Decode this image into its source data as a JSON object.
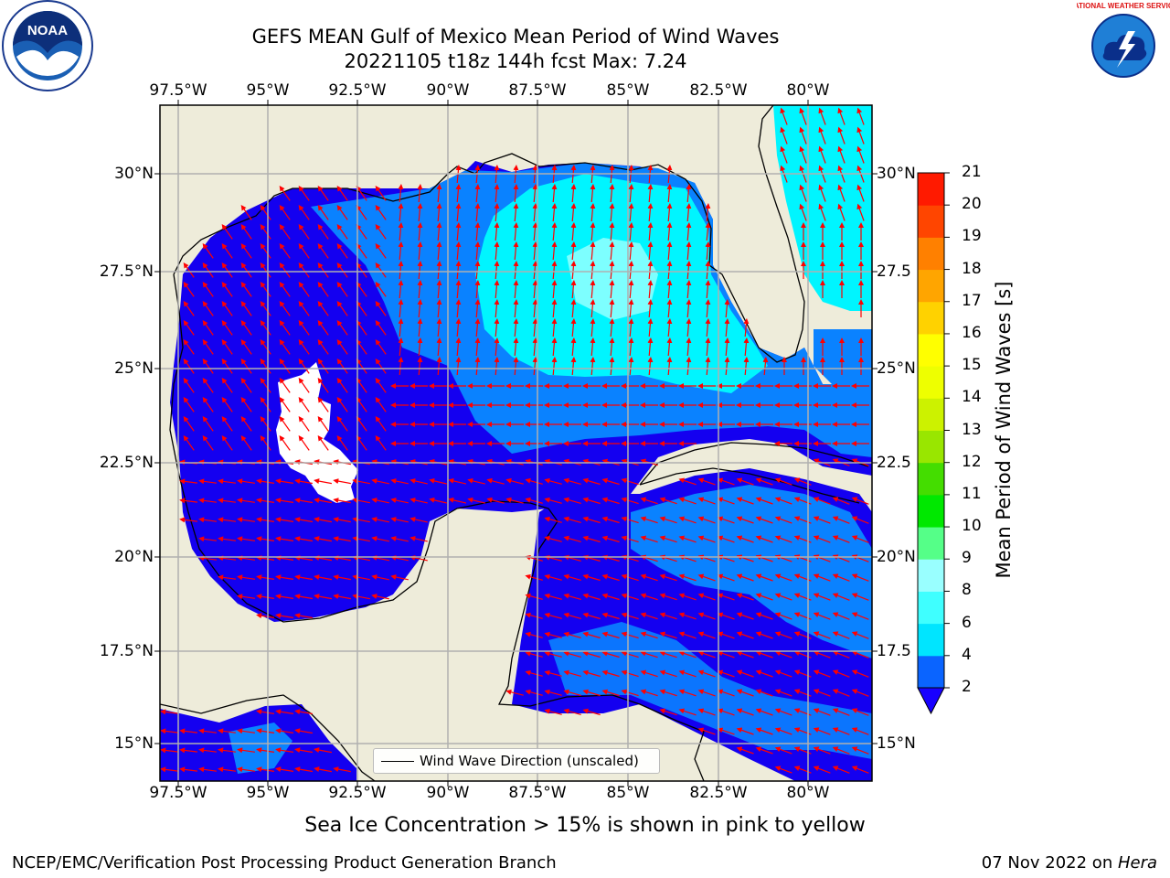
{
  "title": {
    "line1": "GEFS MEAN Gulf of Mexico Mean Period of Wind Waves",
    "line2": "20221105 t18z 144h fcst   Max: 7.24"
  },
  "axes": {
    "lon_labels": [
      "97.5°W",
      "95°W",
      "92.5°W",
      "90°W",
      "87.5°W",
      "85°W",
      "82.5°W",
      "80°W"
    ],
    "lat_labels_left": [
      "30°N",
      "27.5°N",
      "25°N",
      "22.5°N",
      "20°N",
      "17.5°N",
      "15°N"
    ],
    "lat_labels_right": [
      "30°N",
      "27.5",
      "25°N",
      "22.5",
      "20°N",
      "17.5",
      "15°N"
    ]
  },
  "legend": {
    "label": "Wind Wave Direction (unscaled)"
  },
  "colorbar": {
    "label": "Mean Period of Wind Waves [s]",
    "ticks": [
      "2",
      "4",
      "6",
      "8",
      "9",
      "10",
      "11",
      "12",
      "13",
      "14",
      "15",
      "16",
      "17",
      "18",
      "19",
      "20",
      "21"
    ],
    "colors": [
      "#0a64ff",
      "#00e5ff",
      "#3fffff",
      "#99ffff",
      "#aaffee",
      "#55ff88",
      "#00e800",
      "#44dd00",
      "#99e600",
      "#ccf200",
      "#eeff00",
      "#ffff00",
      "#ffd200",
      "#ffa500",
      "#ff8000",
      "#ff4500",
      "#ff1a00",
      "#ff0000"
    ],
    "extend_color": "#1800ff"
  },
  "colors": {
    "land": "#eeecda",
    "deep_blue": "#1400f0",
    "mid_blue": "#0a82ff",
    "cyan": "#00f5ff",
    "light_cyan": "#7dffff",
    "arrow": "#ff0000"
  },
  "notes": {
    "sea_ice": "Sea Ice Concentration > 15% is shown in pink to yellow",
    "credit_left": "NCEP/EMC/Verification Post Processing Product Generation Branch",
    "credit_date": "07 Nov 2022 on ",
    "credit_host": "Hera"
  },
  "logos": {
    "noaa": "NOAA",
    "nws": "NATIONAL WEATHER SERVICE"
  },
  "chart_data": {
    "type": "heatmap",
    "variable": "Mean Period of Wind Waves [s]",
    "forecast": "20221105 t18z 144h fcst",
    "max": 7.24,
    "lon_range": [
      "98°W",
      "77°W"
    ],
    "lat_range": [
      "14°N",
      "31.5°N"
    ],
    "colorbar_range": [
      2,
      21
    ]
  }
}
